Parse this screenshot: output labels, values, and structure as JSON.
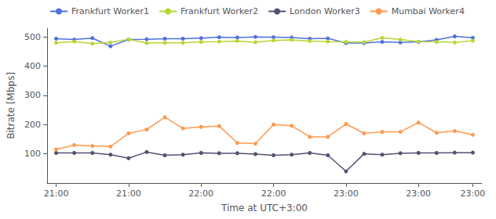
{
  "chart_data": {
    "type": "line",
    "xlabel": "Time at UTC+3:00",
    "ylabel": "Bitrate [Mbps]",
    "x": [
      0,
      1,
      2,
      3,
      4,
      5,
      6,
      7,
      8,
      9,
      10,
      11,
      12,
      13,
      14,
      15,
      16,
      17,
      18,
      19,
      20,
      21,
      22,
      23
    ],
    "series": [
      {
        "name": "Frankfurt Worker1",
        "values": [
          494,
          491,
          496,
          468,
          491,
          492,
          494,
          494,
          496,
          499,
          498,
          500,
          499,
          498,
          494,
          495,
          479,
          479,
          483,
          481,
          483,
          490,
          502,
          497
        ]
      },
      {
        "name": "Frankfurt Worker2",
        "values": [
          480,
          484,
          477,
          481,
          492,
          479,
          480,
          480,
          483,
          484,
          486,
          482,
          488,
          490,
          486,
          484,
          483,
          482,
          497,
          491,
          484,
          483,
          481,
          487
        ]
      },
      {
        "name": "London Worker3",
        "values": [
          103,
          103,
          103,
          97,
          85,
          106,
          95,
          97,
          103,
          102,
          102,
          99,
          95,
          97,
          103,
          95,
          40,
          100,
          97,
          102,
          103,
          103,
          104,
          104
        ]
      },
      {
        "name": "Mumbai Worker4",
        "values": [
          115,
          130,
          127,
          125,
          170,
          183,
          225,
          187,
          192,
          195,
          137,
          135,
          200,
          196,
          158,
          158,
          202,
          170,
          175,
          175,
          207,
          172,
          178,
          165
        ]
      }
    ],
    "xlim": [
      -0.5,
      23.5
    ],
    "xticks": [
      {
        "value": 0,
        "label": "21:00"
      },
      {
        "value": 4,
        "label": "21:00"
      },
      {
        "value": 8,
        "label": "22:00"
      },
      {
        "value": 12,
        "label": "22:00"
      },
      {
        "value": 16,
        "label": "23:00"
      },
      {
        "value": 20,
        "label": "23:00"
      },
      {
        "value": 23,
        "label": "23:00"
      }
    ],
    "ylim": [
      0,
      530
    ],
    "yticks": [
      100,
      200,
      300,
      400,
      500
    ],
    "marker": "o",
    "legend": "upper left",
    "grid": false
  }
}
